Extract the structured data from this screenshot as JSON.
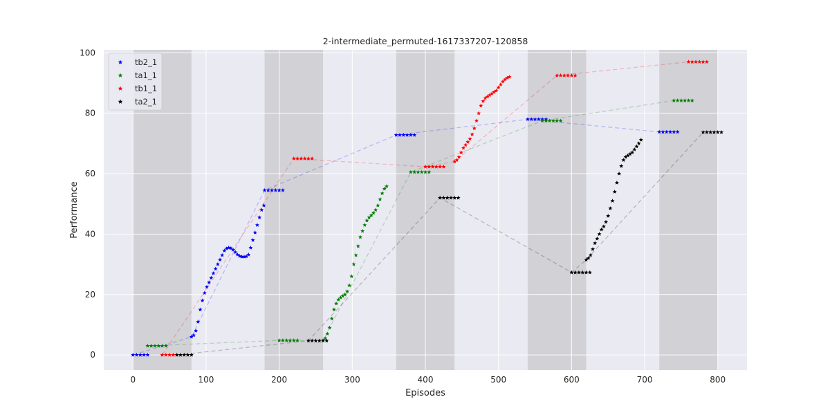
{
  "chart_data": {
    "type": "scatter",
    "title": "2-intermediate_permuted-1617337207-120858",
    "xlabel": "Episodes",
    "ylabel": "Performance",
    "xlim": [
      -40,
      840
    ],
    "ylim": [
      -5,
      101
    ],
    "xticks": [
      0,
      100,
      200,
      300,
      400,
      500,
      600,
      700,
      800
    ],
    "yticks": [
      0,
      20,
      40,
      60,
      80,
      100
    ],
    "grid": true,
    "legend_position": "top-left",
    "shaded_x_ranges": [
      [
        0,
        80
      ],
      [
        180,
        260
      ],
      [
        360,
        440
      ],
      [
        540,
        620
      ],
      [
        720,
        800
      ]
    ],
    "series": [
      {
        "name": "tb2_1",
        "color": "#0000ff",
        "points": [
          [
            0,
            0
          ],
          [
            5,
            0
          ],
          [
            10,
            0
          ],
          [
            15,
            0
          ],
          [
            20,
            0
          ],
          [
            80,
            6
          ],
          [
            83,
            6.5
          ],
          [
            86,
            8
          ],
          [
            89,
            11
          ],
          [
            92,
            15
          ],
          [
            95,
            18
          ],
          [
            98,
            20.5
          ],
          [
            101,
            22.5
          ],
          [
            104,
            24
          ],
          [
            107,
            25.5
          ],
          [
            110,
            27
          ],
          [
            113,
            28.5
          ],
          [
            116,
            30
          ],
          [
            119,
            31.5
          ],
          [
            122,
            33
          ],
          [
            125,
            34.5
          ],
          [
            128,
            35.2
          ],
          [
            131,
            35.5
          ],
          [
            134,
            35.3
          ],
          [
            137,
            34.8
          ],
          [
            140,
            34
          ],
          [
            143,
            33.2
          ],
          [
            146,
            32.7
          ],
          [
            149,
            32.5
          ],
          [
            152,
            32.5
          ],
          [
            155,
            32.6
          ],
          [
            158,
            33.2
          ],
          [
            161,
            35.5
          ],
          [
            164,
            38
          ],
          [
            167,
            40.5
          ],
          [
            170,
            43
          ],
          [
            173,
            45.5
          ],
          [
            176,
            48
          ],
          [
            179,
            49.5
          ],
          [
            180,
            54.5
          ],
          [
            185,
            54.5
          ],
          [
            190,
            54.5
          ],
          [
            195,
            54.5
          ],
          [
            200,
            54.5
          ],
          [
            205,
            54.5
          ],
          [
            360,
            72.8
          ],
          [
            365,
            72.8
          ],
          [
            370,
            72.8
          ],
          [
            375,
            72.8
          ],
          [
            380,
            72.8
          ],
          [
            385,
            72.8
          ],
          [
            540,
            78
          ],
          [
            545,
            78
          ],
          [
            550,
            78
          ],
          [
            555,
            78
          ],
          [
            560,
            78
          ],
          [
            565,
            78
          ],
          [
            720,
            73.8
          ],
          [
            725,
            73.8
          ],
          [
            730,
            73.8
          ],
          [
            735,
            73.8
          ],
          [
            740,
            73.8
          ],
          [
            745,
            73.8
          ]
        ],
        "trend": [
          [
            0,
            0
          ],
          [
            80,
            6
          ],
          [
            180,
            54.5
          ],
          [
            360,
            72.8
          ],
          [
            540,
            78
          ],
          [
            720,
            73.8
          ]
        ]
      },
      {
        "name": "ta1_1",
        "color": "#007f00",
        "points": [
          [
            20,
            3
          ],
          [
            25,
            3
          ],
          [
            30,
            3
          ],
          [
            35,
            3
          ],
          [
            40,
            3
          ],
          [
            45,
            3
          ],
          [
            200,
            4.8
          ],
          [
            205,
            4.8
          ],
          [
            210,
            4.8
          ],
          [
            215,
            4.8
          ],
          [
            220,
            4.8
          ],
          [
            225,
            4.8
          ],
          [
            260,
            4.8
          ],
          [
            263,
            5.5
          ],
          [
            266,
            7
          ],
          [
            269,
            9
          ],
          [
            272,
            12
          ],
          [
            275,
            15
          ],
          [
            278,
            17
          ],
          [
            281,
            18.3
          ],
          [
            284,
            19
          ],
          [
            287,
            19.5
          ],
          [
            290,
            20
          ],
          [
            293,
            21
          ],
          [
            296,
            23
          ],
          [
            299,
            26
          ],
          [
            302,
            30
          ],
          [
            305,
            33
          ],
          [
            308,
            36
          ],
          [
            311,
            39
          ],
          [
            314,
            41
          ],
          [
            317,
            43
          ],
          [
            320,
            44.5
          ],
          [
            323,
            45.5
          ],
          [
            326,
            46.2
          ],
          [
            329,
            47
          ],
          [
            332,
            48
          ],
          [
            335,
            49.5
          ],
          [
            338,
            51.5
          ],
          [
            341,
            53.5
          ],
          [
            344,
            55
          ],
          [
            347,
            55.8
          ],
          [
            380,
            60.5
          ],
          [
            385,
            60.5
          ],
          [
            390,
            60.5
          ],
          [
            395,
            60.5
          ],
          [
            400,
            60.5
          ],
          [
            405,
            60.5
          ],
          [
            560,
            77.5
          ],
          [
            565,
            77.5
          ],
          [
            570,
            77.5
          ],
          [
            575,
            77.5
          ],
          [
            580,
            77.5
          ],
          [
            585,
            77.5
          ],
          [
            740,
            84.2
          ],
          [
            745,
            84.2
          ],
          [
            750,
            84.2
          ],
          [
            755,
            84.2
          ],
          [
            760,
            84.2
          ],
          [
            765,
            84.2
          ]
        ],
        "trend": [
          [
            20,
            3
          ],
          [
            200,
            4.8
          ],
          [
            260,
            4.8
          ],
          [
            380,
            60.5
          ],
          [
            560,
            77.5
          ],
          [
            740,
            84.2
          ]
        ]
      },
      {
        "name": "tb1_1",
        "color": "#ff0000",
        "points": [
          [
            40,
            0
          ],
          [
            45,
            0
          ],
          [
            50,
            0
          ],
          [
            55,
            0
          ],
          [
            60,
            0
          ],
          [
            220,
            65
          ],
          [
            225,
            65
          ],
          [
            230,
            65
          ],
          [
            235,
            65
          ],
          [
            240,
            65
          ],
          [
            245,
            65
          ],
          [
            400,
            62.3
          ],
          [
            405,
            62.3
          ],
          [
            410,
            62.3
          ],
          [
            415,
            62.3
          ],
          [
            420,
            62.3
          ],
          [
            425,
            62.3
          ],
          [
            440,
            64
          ],
          [
            443,
            64.5
          ],
          [
            446,
            65.5
          ],
          [
            449,
            67
          ],
          [
            452,
            68.5
          ],
          [
            455,
            69.5
          ],
          [
            458,
            70.5
          ],
          [
            461,
            71.5
          ],
          [
            464,
            73
          ],
          [
            467,
            75
          ],
          [
            470,
            77.5
          ],
          [
            473,
            80
          ],
          [
            476,
            82.5
          ],
          [
            479,
            84
          ],
          [
            482,
            85
          ],
          [
            485,
            85.5
          ],
          [
            488,
            86
          ],
          [
            491,
            86.5
          ],
          [
            494,
            87
          ],
          [
            497,
            87.5
          ],
          [
            500,
            88.5
          ],
          [
            503,
            89.5
          ],
          [
            506,
            90.5
          ],
          [
            509,
            91.2
          ],
          [
            512,
            91.7
          ],
          [
            515,
            92
          ],
          [
            580,
            92.5
          ],
          [
            585,
            92.5
          ],
          [
            590,
            92.5
          ],
          [
            595,
            92.5
          ],
          [
            600,
            92.5
          ],
          [
            605,
            92.5
          ],
          [
            760,
            97
          ],
          [
            765,
            97
          ],
          [
            770,
            97
          ],
          [
            775,
            97
          ],
          [
            780,
            97
          ],
          [
            785,
            97
          ]
        ],
        "trend": [
          [
            40,
            0
          ],
          [
            220,
            65
          ],
          [
            400,
            62.3
          ],
          [
            440,
            64
          ],
          [
            580,
            92.5
          ],
          [
            760,
            97
          ]
        ]
      },
      {
        "name": "ta2_1",
        "color": "#000000",
        "points": [
          [
            60,
            0
          ],
          [
            65,
            0
          ],
          [
            70,
            0
          ],
          [
            75,
            0
          ],
          [
            80,
            0
          ],
          [
            240,
            4.7
          ],
          [
            245,
            4.7
          ],
          [
            250,
            4.7
          ],
          [
            255,
            4.7
          ],
          [
            260,
            4.7
          ],
          [
            265,
            4.7
          ],
          [
            420,
            52
          ],
          [
            425,
            52
          ],
          [
            430,
            52
          ],
          [
            435,
            52
          ],
          [
            440,
            52
          ],
          [
            445,
            52
          ],
          [
            600,
            27.3
          ],
          [
            605,
            27.3
          ],
          [
            610,
            27.3
          ],
          [
            615,
            27.3
          ],
          [
            620,
            27.3
          ],
          [
            625,
            27.3
          ],
          [
            620,
            31.5
          ],
          [
            623,
            32
          ],
          [
            626,
            33
          ],
          [
            629,
            35
          ],
          [
            632,
            37
          ],
          [
            635,
            38.5
          ],
          [
            638,
            40
          ],
          [
            641,
            41.5
          ],
          [
            644,
            42.5
          ],
          [
            647,
            44
          ],
          [
            650,
            46
          ],
          [
            653,
            48.5
          ],
          [
            656,
            51
          ],
          [
            659,
            54
          ],
          [
            662,
            57
          ],
          [
            665,
            60
          ],
          [
            668,
            62.5
          ],
          [
            671,
            64.5
          ],
          [
            674,
            65.5
          ],
          [
            677,
            66
          ],
          [
            680,
            66.5
          ],
          [
            683,
            67
          ],
          [
            686,
            68
          ],
          [
            689,
            69
          ],
          [
            692,
            70
          ],
          [
            695,
            71.2
          ],
          [
            780,
            73.7
          ],
          [
            785,
            73.7
          ],
          [
            790,
            73.7
          ],
          [
            795,
            73.7
          ],
          [
            800,
            73.7
          ],
          [
            805,
            73.7
          ]
        ],
        "trend": [
          [
            60,
            0
          ],
          [
            240,
            4.7
          ],
          [
            420,
            52
          ],
          [
            600,
            27.3
          ],
          [
            620,
            31.5
          ],
          [
            780,
            73.7
          ]
        ]
      }
    ]
  }
}
